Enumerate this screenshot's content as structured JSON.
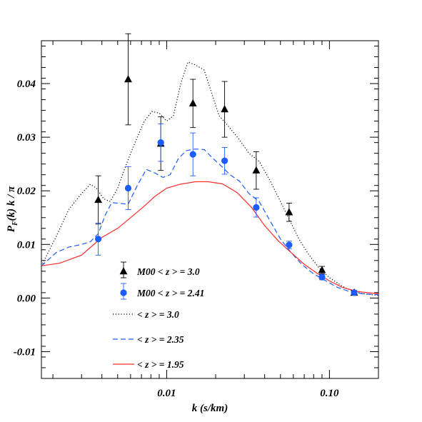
{
  "chart_data": {
    "type": "line",
    "xlabel": "k (s/km)",
    "ylabel": "P_F(k) k / π",
    "ylabel_main": "P",
    "ylabel_sub": "F",
    "ylabel_rest": "(k) k / π",
    "x_scale": "log",
    "xlim": [
      0.0017,
      0.2
    ],
    "ylim": [
      -0.015,
      0.048
    ],
    "x_ticks": [
      0.01,
      0.1
    ],
    "x_tick_labels": [
      "0.01",
      "0.10"
    ],
    "y_ticks": [
      -0.01,
      0.0,
      0.01,
      0.02,
      0.03,
      0.04
    ],
    "y_tick_labels": [
      "-0.01",
      "0.00",
      "0.01",
      "0.02",
      "0.03",
      "0.04"
    ],
    "grid": false,
    "legend_position": "bottom-left",
    "colors": {
      "black": "#000000",
      "blue": "#1a5cff",
      "red": "#ff2a2a"
    },
    "series": [
      {
        "name": "M00 < z > = 3.0",
        "kind": "points",
        "marker": "triangle",
        "color": "#000000",
        "x": [
          0.0038,
          0.0058,
          0.0092,
          0.0145,
          0.0227,
          0.0355,
          0.0565,
          0.09,
          0.142
        ],
        "y": [
          0.0183,
          0.0408,
          0.0288,
          0.0363,
          0.0352,
          0.0238,
          0.016,
          0.0052,
          0.001
        ],
        "err": [
          0.0045,
          0.0085,
          0.005,
          0.0045,
          0.0052,
          0.0035,
          0.0017,
          0.0007,
          0.0004
        ]
      },
      {
        "name": "M00 < z > = 2.41",
        "kind": "points",
        "marker": "circle",
        "color": "#1a5cff",
        "x": [
          0.0038,
          0.0058,
          0.0092,
          0.0145,
          0.0227,
          0.0355,
          0.0565,
          0.09,
          0.142
        ],
        "y": [
          0.011,
          0.0205,
          0.029,
          0.0268,
          0.0256,
          0.0169,
          0.0099,
          0.0039,
          0.001
        ],
        "err": [
          0.003,
          0.004,
          0.0035,
          0.004,
          0.0025,
          0.0018,
          0.0007,
          0.0005,
          0.0003
        ]
      },
      {
        "name": "< z > = 3.0",
        "kind": "line",
        "dash": "dotted",
        "color": "#000000",
        "x": [
          0.0017,
          0.0021,
          0.0025,
          0.003,
          0.0034,
          0.0037,
          0.0041,
          0.0045,
          0.005,
          0.0055,
          0.006,
          0.0066,
          0.0073,
          0.0081,
          0.009,
          0.01,
          0.011,
          0.0122,
          0.0135,
          0.015,
          0.017,
          0.019,
          0.021,
          0.024,
          0.028,
          0.032,
          0.037,
          0.043,
          0.05,
          0.057,
          0.065,
          0.075,
          0.087,
          0.1,
          0.12,
          0.14,
          0.17,
          0.2
        ],
        "y": [
          0.006,
          0.0115,
          0.0165,
          0.0195,
          0.0212,
          0.0205,
          0.0185,
          0.018,
          0.0205,
          0.024,
          0.027,
          0.03,
          0.033,
          0.0348,
          0.0345,
          0.033,
          0.034,
          0.04,
          0.044,
          0.0435,
          0.0425,
          0.038,
          0.034,
          0.032,
          0.0295,
          0.027,
          0.0255,
          0.022,
          0.018,
          0.0145,
          0.011,
          0.008,
          0.0055,
          0.0038,
          0.0022,
          0.0012,
          0.0007,
          0.0005
        ]
      },
      {
        "name": "< z > = 2.35",
        "kind": "line",
        "dash": "dashed",
        "color": "#1a5cff",
        "x": [
          0.0017,
          0.0021,
          0.0025,
          0.003,
          0.0034,
          0.0038,
          0.0042,
          0.0046,
          0.005,
          0.0058,
          0.0066,
          0.0075,
          0.0085,
          0.0095,
          0.0105,
          0.0118,
          0.0132,
          0.015,
          0.017,
          0.019,
          0.0215,
          0.0245,
          0.028,
          0.032,
          0.037,
          0.043,
          0.05,
          0.058,
          0.068,
          0.08,
          0.095,
          0.112,
          0.133,
          0.16,
          0.2
        ],
        "y": [
          0.006,
          0.0085,
          0.0095,
          0.01,
          0.0105,
          0.012,
          0.0155,
          0.0178,
          0.0177,
          0.0175,
          0.021,
          0.024,
          0.0233,
          0.0225,
          0.023,
          0.026,
          0.0275,
          0.0278,
          0.0277,
          0.0262,
          0.0247,
          0.023,
          0.0218,
          0.0195,
          0.018,
          0.0145,
          0.011,
          0.0085,
          0.0062,
          0.0045,
          0.0032,
          0.002,
          0.0012,
          0.0008,
          0.0006
        ]
      },
      {
        "name": "< z > = 1.95",
        "kind": "line",
        "dash": "solid",
        "color": "#ff2a2a",
        "x": [
          0.0017,
          0.0022,
          0.003,
          0.004,
          0.005,
          0.006,
          0.0072,
          0.0085,
          0.01,
          0.012,
          0.015,
          0.018,
          0.022,
          0.027,
          0.033,
          0.04,
          0.048,
          0.058,
          0.07,
          0.085,
          0.1,
          0.12,
          0.15,
          0.2
        ],
        "y": [
          0.006,
          0.0065,
          0.008,
          0.0113,
          0.013,
          0.015,
          0.017,
          0.019,
          0.0205,
          0.0212,
          0.0217,
          0.0217,
          0.0213,
          0.0197,
          0.017,
          0.0135,
          0.0108,
          0.0085,
          0.0063,
          0.0045,
          0.0032,
          0.002,
          0.0012,
          0.0008
        ]
      }
    ]
  }
}
